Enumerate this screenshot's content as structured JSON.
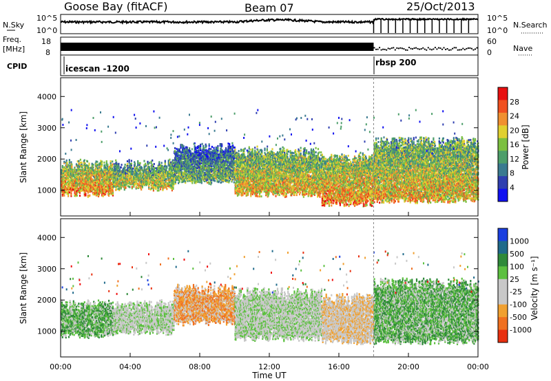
{
  "header": {
    "station": "Goose Bay (fitACF)",
    "beam": "Beam 07",
    "date": "25/Oct/2013"
  },
  "top_panels": {
    "nsky_label": "N.Sky",
    "nsky_ticks": [
      "10^5",
      "10^0"
    ],
    "nsearch_label": "N.Search",
    "nsearch_ticks": [
      "10^5",
      "10^0"
    ],
    "freq_label_1": "Freq.",
    "freq_label_2": "[MHz]",
    "freq_ticks": [
      "18",
      "8"
    ],
    "nave_label": "Nave",
    "nave_ticks": [
      "60",
      "0"
    ],
    "cpid_label": "CPID",
    "cpid_segments": [
      {
        "name": "icescan -1200",
        "start_hour": 0
      },
      {
        "name": "rbsp 200",
        "start_hour": 18.0
      }
    ]
  },
  "colors": {
    "power": [
      "#1010f0",
      "#2f3fb0",
      "#3a7a90",
      "#4d9e6a",
      "#7cc040",
      "#e0d030",
      "#f09030",
      "#f05020",
      "#e81010"
    ],
    "velocity": [
      "#1a3fe0",
      "#1f6a8a",
      "#2f8a3a",
      "#5cc040",
      "#c8c8c8",
      "#c8c8c8",
      "#f0a030",
      "#f07020",
      "#e83010",
      "#f01010"
    ]
  },
  "chart_data": [
    {
      "type": "heatmap",
      "name": "power",
      "xlabel": "Time UT",
      "ylabel": "Slant Range [km]",
      "xlim": [
        0,
        24
      ],
      "ylim": [
        180,
        4600
      ],
      "x_tick_labels": [
        "00:00",
        "04:00",
        "08:00",
        "12:00",
        "16:00",
        "20:00",
        "00:00"
      ],
      "y_tick_labels": [
        "1000",
        "2000",
        "3000",
        "4000"
      ],
      "colorbar_label": "Power [dB]",
      "colorbar_ticks": [
        "4",
        "8",
        "12",
        "16",
        "20",
        "24",
        "28"
      ],
      "colorbar_range": [
        0,
        30
      ],
      "echo_bands": [
        {
          "t0": 0.0,
          "t1": 3.0,
          "r0": 900,
          "r1": 1800,
          "level": 22
        },
        {
          "t0": 3.0,
          "t1": 6.5,
          "r0": 1100,
          "r1": 1800,
          "level": 18
        },
        {
          "t0": 6.5,
          "t1": 10.0,
          "r0": 1300,
          "r1": 2300,
          "level": 14
        },
        {
          "t0": 10.0,
          "t1": 15.0,
          "r0": 900,
          "r1": 2200,
          "level": 20
        },
        {
          "t0": 15.0,
          "t1": 18.0,
          "r0": 600,
          "r1": 2000,
          "level": 22
        },
        {
          "t0": 18.0,
          "t1": 24.0,
          "r0": 700,
          "r1": 2500,
          "level": 20
        }
      ]
    },
    {
      "type": "heatmap",
      "name": "velocity",
      "xlabel": "Time UT",
      "ylabel": "Slant Range [km]",
      "xlim": [
        0,
        24
      ],
      "ylim": [
        180,
        4600
      ],
      "x_tick_labels": [
        "00:00",
        "04:00",
        "08:00",
        "12:00",
        "16:00",
        "20:00",
        "00:00"
      ],
      "y_tick_labels": [
        "1000",
        "2000",
        "3000",
        "4000"
      ],
      "colorbar_label": "Velocity [m s⁻¹]",
      "colorbar_ticks": [
        "1000",
        "500",
        "100",
        "25",
        "-25",
        "-100",
        "-500",
        "-1000"
      ],
      "echo_bands": [
        {
          "t0": 0.0,
          "t1": 3.0,
          "r0": 900,
          "r1": 1800,
          "level": 3
        },
        {
          "t0": 3.0,
          "t1": 6.5,
          "r0": 1000,
          "r1": 1800,
          "level": 4
        },
        {
          "t0": 6.5,
          "t1": 10.0,
          "r0": 1300,
          "r1": 2300,
          "level": 6
        },
        {
          "t0": 10.0,
          "t1": 15.0,
          "r0": 800,
          "r1": 2200,
          "level": 4
        },
        {
          "t0": 15.0,
          "t1": 18.0,
          "r0": 700,
          "r1": 2000,
          "level": 5
        },
        {
          "t0": 18.0,
          "t1": 24.0,
          "r0": 700,
          "r1": 2500,
          "level": 3
        }
      ]
    }
  ]
}
